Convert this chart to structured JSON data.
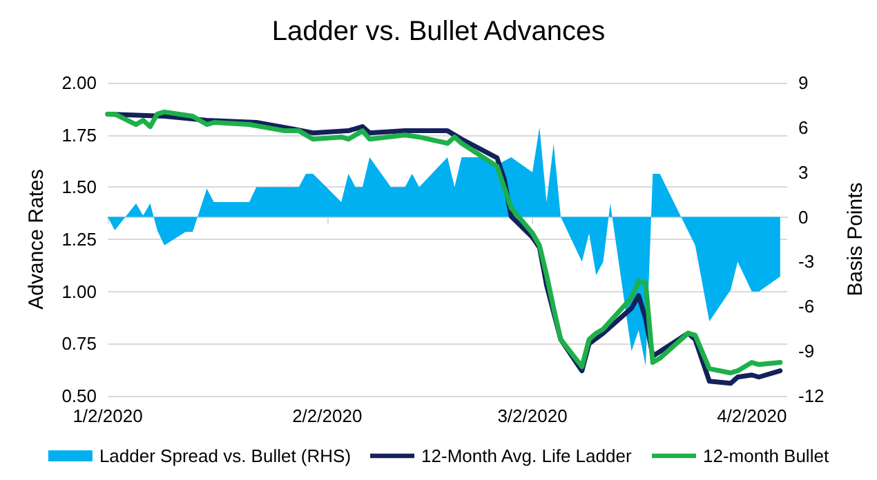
{
  "chart_data": {
    "type": "line",
    "title": "Ladder vs. Bullet Advances",
    "ylabel": "Advance Rates",
    "y2label": "Basis Points",
    "xlim": [
      "2020-01-02",
      "2020-04-07"
    ],
    "xticks": [
      {
        "value": "2020-01-02",
        "label": "1/2/2020"
      },
      {
        "value": "2020-02-02",
        "label": "2/2/2020"
      },
      {
        "value": "2020-03-02",
        "label": "3/2/2020"
      },
      {
        "value": "2020-04-02",
        "label": "4/2/2020"
      }
    ],
    "ylim": [
      0.5,
      2.0
    ],
    "yticks": [
      {
        "value": 0.5,
        "label": "0.50"
      },
      {
        "value": 0.75,
        "label": "0.75"
      },
      {
        "value": 1.0,
        "label": "1.00"
      },
      {
        "value": 1.25,
        "label": "1.25"
      },
      {
        "value": 1.5,
        "label": "1.50"
      },
      {
        "value": 1.75,
        "label": "1.75"
      },
      {
        "value": 2.0,
        "label": "2.00"
      }
    ],
    "y2lim": [
      -12,
      9
    ],
    "y2ticks": [
      -12,
      -9,
      -6,
      -3,
      0,
      3,
      6,
      9
    ],
    "grid": "y",
    "legend": "bottom",
    "marker": "none",
    "line_style": "solid",
    "series": [
      {
        "name": "Ladder Spread vs. Bullet (RHS)",
        "type": "area",
        "axis": "y2",
        "color": "#00b0f0",
        "x": [
          "2020-01-02",
          "2020-01-03",
          "2020-01-06",
          "2020-01-07",
          "2020-01-08",
          "2020-01-09",
          "2020-01-10",
          "2020-01-13",
          "2020-01-14",
          "2020-01-16",
          "2020-01-17",
          "2020-01-22",
          "2020-01-23",
          "2020-01-29",
          "2020-01-30",
          "2020-01-31",
          "2020-02-04",
          "2020-02-05",
          "2020-02-06",
          "2020-02-07",
          "2020-02-08",
          "2020-02-11",
          "2020-02-13",
          "2020-02-14",
          "2020-02-15",
          "2020-02-19",
          "2020-02-20",
          "2020-02-21",
          "2020-02-24",
          "2020-02-26",
          "2020-02-28",
          "2020-03-02",
          "2020-03-03",
          "2020-03-04",
          "2020-03-05",
          "2020-03-06",
          "2020-03-09",
          "2020-03-10",
          "2020-03-11",
          "2020-03-12",
          "2020-03-13",
          "2020-03-16",
          "2020-03-17",
          "2020-03-18",
          "2020-03-19",
          "2020-03-20",
          "2020-03-23",
          "2020-03-25",
          "2020-03-27",
          "2020-03-30",
          "2020-03-31",
          "2020-04-02",
          "2020-04-03",
          "2020-04-06"
        ],
        "values": [
          0,
          -0.9,
          0.9,
          0.1,
          0.9,
          -0.9,
          -1.9,
          -1.0,
          -1.0,
          1.9,
          1.0,
          1.0,
          2.0,
          2.0,
          2.9,
          2.9,
          1.0,
          2.9,
          2.0,
          2.0,
          4.0,
          2.0,
          2.0,
          2.9,
          2.0,
          4.0,
          2.0,
          4.0,
          4.0,
          3.5,
          4.0,
          3.0,
          6.0,
          1.0,
          4.9,
          0,
          -3.0,
          -1.1,
          -3.9,
          -3.0,
          0.9,
          -9.0,
          -7.6,
          -10.0,
          2.9,
          2.9,
          0,
          -1.9,
          -7.0,
          -4.9,
          -3.0,
          -5.0,
          -5.0,
          -4.0
        ]
      },
      {
        "name": "12-Month Avg. Life Ladder",
        "color": "#14215a",
        "x": [
          "2020-01-02",
          "2020-01-10",
          "2020-01-16",
          "2020-01-23",
          "2020-01-28",
          "2020-01-31",
          "2020-02-05",
          "2020-02-07",
          "2020-02-08",
          "2020-02-13",
          "2020-02-15",
          "2020-02-19",
          "2020-02-21",
          "2020-02-26",
          "2020-02-27",
          "2020-02-28",
          "2020-03-02",
          "2020-03-03",
          "2020-03-04",
          "2020-03-06",
          "2020-03-09",
          "2020-03-10",
          "2020-03-12",
          "2020-03-16",
          "2020-03-17",
          "2020-03-18",
          "2020-03-19",
          "2020-03-24",
          "2020-03-25",
          "2020-03-27",
          "2020-03-30",
          "2020-03-31",
          "2020-04-02",
          "2020-04-03",
          "2020-04-06"
        ],
        "values": [
          1.85,
          1.84,
          1.82,
          1.81,
          1.78,
          1.76,
          1.77,
          1.79,
          1.76,
          1.77,
          1.77,
          1.77,
          1.73,
          1.64,
          1.54,
          1.36,
          1.26,
          1.21,
          1.03,
          0.77,
          0.62,
          0.75,
          0.8,
          0.92,
          0.98,
          0.87,
          0.69,
          0.8,
          0.77,
          0.57,
          0.56,
          0.59,
          0.6,
          0.59,
          0.62
        ]
      },
      {
        "name": "12-month Bullet",
        "color": "#1eb04a",
        "x": [
          "2020-01-02",
          "2020-01-03",
          "2020-01-06",
          "2020-01-07",
          "2020-01-08",
          "2020-01-09",
          "2020-01-10",
          "2020-01-14",
          "2020-01-16",
          "2020-01-17",
          "2020-01-22",
          "2020-01-27",
          "2020-01-29",
          "2020-01-31",
          "2020-02-04",
          "2020-02-05",
          "2020-02-07",
          "2020-02-08",
          "2020-02-13",
          "2020-02-15",
          "2020-02-19",
          "2020-02-20",
          "2020-02-21",
          "2020-02-26",
          "2020-02-27",
          "2020-02-28",
          "2020-03-02",
          "2020-03-03",
          "2020-03-04",
          "2020-03-05",
          "2020-03-06",
          "2020-03-09",
          "2020-03-10",
          "2020-03-11",
          "2020-03-12",
          "2020-03-16",
          "2020-03-17",
          "2020-03-18",
          "2020-03-19",
          "2020-03-20",
          "2020-03-24",
          "2020-03-25",
          "2020-03-27",
          "2020-03-30",
          "2020-03-31",
          "2020-04-02",
          "2020-04-03",
          "2020-04-06"
        ],
        "values": [
          1.85,
          1.85,
          1.8,
          1.82,
          1.79,
          1.85,
          1.86,
          1.84,
          1.8,
          1.81,
          1.8,
          1.77,
          1.77,
          1.73,
          1.74,
          1.73,
          1.77,
          1.73,
          1.75,
          1.74,
          1.71,
          1.74,
          1.71,
          1.6,
          1.5,
          1.4,
          1.28,
          1.22,
          1.08,
          0.92,
          0.77,
          0.64,
          0.77,
          0.8,
          0.82,
          0.97,
          1.05,
          1.04,
          0.66,
          0.68,
          0.8,
          0.79,
          0.63,
          0.61,
          0.62,
          0.66,
          0.65,
          0.66
        ]
      }
    ]
  }
}
